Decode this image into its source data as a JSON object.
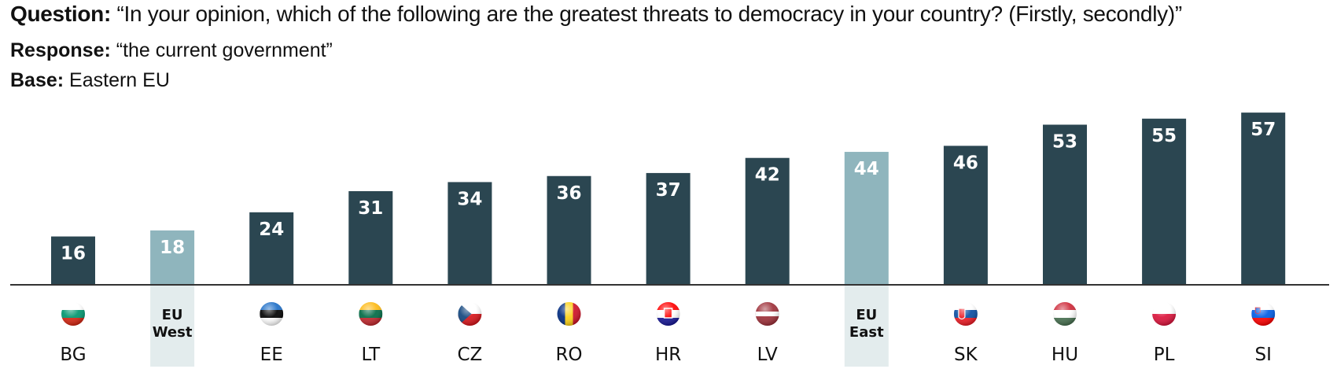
{
  "header": {
    "question_label": "Question:",
    "question_text": " “In your opinion, which of the following are the greatest threats to democracy in your country? (Firstly, secondly)”",
    "response_label": "Response:",
    "response_text": " “the current government”",
    "base_label": "Base:",
    "base_text": " Eastern EU"
  },
  "colors": {
    "country_bar": "#2b4651",
    "aggregate_bar": "#8fb5bd",
    "aggregate_band": "#e3eced",
    "baseline": "#333333"
  },
  "chart_data": {
    "type": "bar",
    "title": "In your opinion, which of the following are the greatest threats to democracy in your country? (Firstly, secondly)",
    "subtitle": "Response: the current government; Base: Eastern EU",
    "xlabel": "",
    "ylabel": "",
    "ylim": [
      0,
      60
    ],
    "grid": false,
    "legend": "none",
    "categories": [
      "BG",
      "EU West",
      "EE",
      "LT",
      "CZ",
      "RO",
      "HR",
      "LV",
      "EU East",
      "SK",
      "HU",
      "PL",
      "SI"
    ],
    "values": [
      16,
      18,
      24,
      31,
      34,
      36,
      37,
      42,
      44,
      46,
      53,
      55,
      57
    ],
    "items": [
      {
        "code": "BG",
        "value": 16,
        "aggregate": false,
        "flag": "bulgaria-flag"
      },
      {
        "code": "EU West",
        "label_lines": [
          "EU",
          "West"
        ],
        "value": 18,
        "aggregate": true
      },
      {
        "code": "EE",
        "value": 24,
        "aggregate": false,
        "flag": "estonia-flag"
      },
      {
        "code": "LT",
        "value": 31,
        "aggregate": false,
        "flag": "lithuania-flag"
      },
      {
        "code": "CZ",
        "value": 34,
        "aggregate": false,
        "flag": "czechia-flag"
      },
      {
        "code": "RO",
        "value": 36,
        "aggregate": false,
        "flag": "romania-flag"
      },
      {
        "code": "HR",
        "value": 37,
        "aggregate": false,
        "flag": "croatia-flag"
      },
      {
        "code": "LV",
        "value": 42,
        "aggregate": false,
        "flag": "latvia-flag"
      },
      {
        "code": "EU East",
        "label_lines": [
          "EU",
          "East"
        ],
        "value": 44,
        "aggregate": true
      },
      {
        "code": "SK",
        "value": 46,
        "aggregate": false,
        "flag": "slovakia-flag"
      },
      {
        "code": "HU",
        "value": 53,
        "aggregate": false,
        "flag": "hungary-flag"
      },
      {
        "code": "PL",
        "value": 55,
        "aggregate": false,
        "flag": "poland-flag"
      },
      {
        "code": "SI",
        "value": 57,
        "aggregate": false,
        "flag": "slovenia-flag"
      }
    ]
  }
}
